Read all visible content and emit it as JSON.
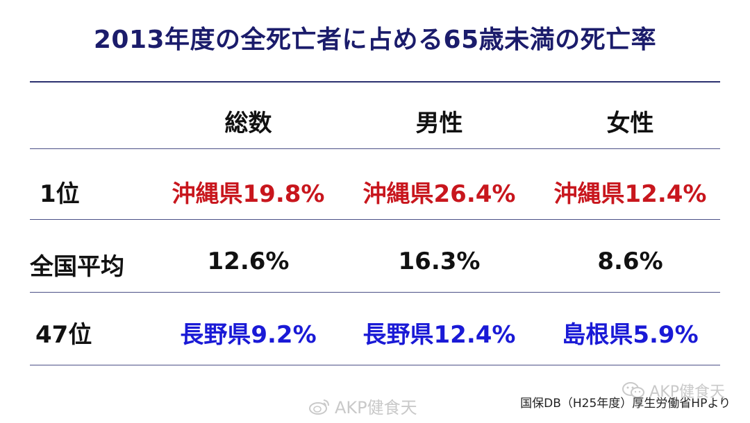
{
  "title": "2013年度の全死亡者に占める65歳未満の死亡率",
  "colors": {
    "title": "#1b1c6b",
    "top_value": "#c8161d",
    "bottom_value": "#1a1ad6",
    "normal_value": "#111111",
    "rule": "#2b2f6e"
  },
  "table": {
    "headers": [
      "",
      "総数",
      "男性",
      "女性"
    ],
    "rows": [
      {
        "label": "1位",
        "cells": [
          "沖縄県19.8%",
          "沖縄県26.4%",
          "沖縄県12.4%"
        ]
      },
      {
        "label": "全国平均",
        "cells": [
          "12.6%",
          "16.3%",
          "8.6%"
        ]
      },
      {
        "label": "47位",
        "cells": [
          "長野県9.2%",
          "長野県12.4%",
          "島根県5.9%"
        ]
      }
    ]
  },
  "footer": {
    "source": "国保DB（H25年度）厚生労働省HPより"
  },
  "watermarks": {
    "top_right": "AKP健食天",
    "bottom_center": "AKP健食天"
  }
}
